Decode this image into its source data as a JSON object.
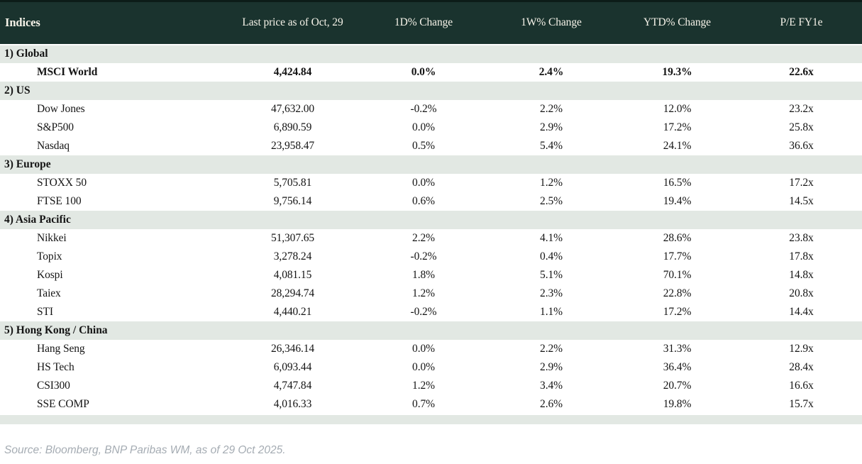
{
  "table": {
    "columns": [
      "Indices",
      "Last price as of Oct, 29",
      "1D% Change",
      "1W% Change",
      "YTD% Change",
      "P/E FY1e"
    ],
    "sections": [
      {
        "label": "1) Global",
        "rows": [
          {
            "name": "MSCI World",
            "last": "4,424.84",
            "d1": "0.0%",
            "d1c": "neg",
            "w1": "2.4%",
            "w1c": "pos",
            "ytd": "19.3%",
            "ytdc": "pos",
            "pe": "22.6x",
            "bold": true
          }
        ]
      },
      {
        "label": "2) US",
        "rows": [
          {
            "name": "Dow Jones",
            "last": "47,632.00",
            "d1": "-0.2%",
            "d1c": "neg",
            "w1": "2.2%",
            "w1c": "pos",
            "ytd": "12.0%",
            "ytdc": "pos",
            "pe": "23.2x",
            "bold": false
          },
          {
            "name": "S&P500",
            "last": "6,890.59",
            "d1": "0.0%",
            "d1c": "neg",
            "w1": "2.9%",
            "w1c": "pos",
            "ytd": "17.2%",
            "ytdc": "pos",
            "pe": "25.8x",
            "bold": false
          },
          {
            "name": "Nasdaq",
            "last": "23,958.47",
            "d1": "0.5%",
            "d1c": "pos",
            "w1": "5.4%",
            "w1c": "pos",
            "ytd": "24.1%",
            "ytdc": "pos",
            "pe": "36.6x",
            "bold": false
          }
        ]
      },
      {
        "label": "3) Europe",
        "rows": [
          {
            "name": "STOXX 50",
            "last": "5,705.81",
            "d1": "0.0%",
            "d1c": "pos",
            "w1": "1.2%",
            "w1c": "pos",
            "ytd": "16.5%",
            "ytdc": "pos",
            "pe": "17.2x",
            "bold": false
          },
          {
            "name": "FTSE 100",
            "last": "9,756.14",
            "d1": "0.6%",
            "d1c": "pos",
            "w1": "2.5%",
            "w1c": "pos",
            "ytd": "19.4%",
            "ytdc": "pos",
            "pe": "14.5x",
            "bold": false
          }
        ]
      },
      {
        "label": "4) Asia Pacific",
        "rows": [
          {
            "name": "Nikkei",
            "last": "51,307.65",
            "d1": "2.2%",
            "d1c": "pos",
            "w1": "4.1%",
            "w1c": "pos",
            "ytd": "28.6%",
            "ytdc": "pos",
            "pe": "23.8x",
            "bold": false
          },
          {
            "name": "Topix",
            "last": "3,278.24",
            "d1": "-0.2%",
            "d1c": "neg",
            "w1": "0.4%",
            "w1c": "pos",
            "ytd": "17.7%",
            "ytdc": "pos",
            "pe": "17.8x",
            "bold": false
          },
          {
            "name": "Kospi",
            "last": "4,081.15",
            "d1": "1.8%",
            "d1c": "pos",
            "w1": "5.1%",
            "w1c": "pos",
            "ytd": "70.1%",
            "ytdc": "pos",
            "pe": "14.8x",
            "bold": false
          },
          {
            "name": "Taiex",
            "last": "28,294.74",
            "d1": "1.2%",
            "d1c": "pos",
            "w1": "2.3%",
            "w1c": "pos",
            "ytd": "22.8%",
            "ytdc": "pos",
            "pe": "20.8x",
            "bold": false
          },
          {
            "name": "STI",
            "last": "4,440.21",
            "d1": "-0.2%",
            "d1c": "neg",
            "w1": "1.1%",
            "w1c": "pos",
            "ytd": "17.2%",
            "ytdc": "pos",
            "pe": "14.4x",
            "bold": false
          }
        ]
      },
      {
        "label": "5) Hong Kong / China",
        "rows": [
          {
            "name": "Hang Seng",
            "last": "26,346.14",
            "d1": "0.0%",
            "d1c": "flat",
            "w1": "2.2%",
            "w1c": "pos",
            "ytd": "31.3%",
            "ytdc": "pos",
            "pe": "12.9x",
            "bold": false
          },
          {
            "name": "HS Tech",
            "last": "6,093.44",
            "d1": "0.0%",
            "d1c": "flat",
            "w1": "2.9%",
            "w1c": "pos",
            "ytd": "36.4%",
            "ytdc": "pos",
            "pe": "28.4x",
            "bold": false
          },
          {
            "name": "CSI300",
            "last": "4,747.84",
            "d1": "1.2%",
            "d1c": "pos",
            "w1": "3.4%",
            "w1c": "pos",
            "ytd": "20.7%",
            "ytdc": "pos",
            "pe": "16.6x",
            "bold": false
          },
          {
            "name": "SSE COMP",
            "last": "4,016.33",
            "d1": "0.7%",
            "d1c": "pos",
            "w1": "2.6%",
            "w1c": "pos",
            "ytd": "19.8%",
            "ytdc": "pos",
            "pe": "15.7x",
            "bold": false
          }
        ]
      }
    ]
  },
  "footer": {
    "source": "Source: Bloomberg, BNP Paribas WM, as of 29 Oct 2025."
  },
  "colors": {
    "header_bg": "#1a332e",
    "header_text": "#f6f3e9",
    "section_bg": "#e2e8e3",
    "positive": "#007a35",
    "negative": "#c00019",
    "neutral_text": "#141414",
    "source_text": "#a5acb3"
  },
  "chart_data": {
    "type": "table",
    "title": "Indices",
    "columns": [
      "Indices",
      "Last price as of Oct, 29",
      "1D% Change",
      "1W% Change",
      "YTD% Change",
      "P/E FY1e"
    ],
    "rows": [
      {
        "section": "1) Global",
        "index": "MSCI World",
        "last_price": 4424.84,
        "d1_pct": 0.0,
        "w1_pct": 2.4,
        "ytd_pct": 19.3,
        "pe_fy1e": "22.6x"
      },
      {
        "section": "2) US",
        "index": "Dow Jones",
        "last_price": 47632.0,
        "d1_pct": -0.2,
        "w1_pct": 2.2,
        "ytd_pct": 12.0,
        "pe_fy1e": "23.2x"
      },
      {
        "section": "2) US",
        "index": "S&P500",
        "last_price": 6890.59,
        "d1_pct": 0.0,
        "w1_pct": 2.9,
        "ytd_pct": 17.2,
        "pe_fy1e": "25.8x"
      },
      {
        "section": "2) US",
        "index": "Nasdaq",
        "last_price": 23958.47,
        "d1_pct": 0.5,
        "w1_pct": 5.4,
        "ytd_pct": 24.1,
        "pe_fy1e": "36.6x"
      },
      {
        "section": "3) Europe",
        "index": "STOXX 50",
        "last_price": 5705.81,
        "d1_pct": 0.0,
        "w1_pct": 1.2,
        "ytd_pct": 16.5,
        "pe_fy1e": "17.2x"
      },
      {
        "section": "3) Europe",
        "index": "FTSE 100",
        "last_price": 9756.14,
        "d1_pct": 0.6,
        "w1_pct": 2.5,
        "ytd_pct": 19.4,
        "pe_fy1e": "14.5x"
      },
      {
        "section": "4) Asia Pacific",
        "index": "Nikkei",
        "last_price": 51307.65,
        "d1_pct": 2.2,
        "w1_pct": 4.1,
        "ytd_pct": 28.6,
        "pe_fy1e": "23.8x"
      },
      {
        "section": "4) Asia Pacific",
        "index": "Topix",
        "last_price": 3278.24,
        "d1_pct": -0.2,
        "w1_pct": 0.4,
        "ytd_pct": 17.7,
        "pe_fy1e": "17.8x"
      },
      {
        "section": "4) Asia Pacific",
        "index": "Kospi",
        "last_price": 4081.15,
        "d1_pct": 1.8,
        "w1_pct": 5.1,
        "ytd_pct": 70.1,
        "pe_fy1e": "14.8x"
      },
      {
        "section": "4) Asia Pacific",
        "index": "Taiex",
        "last_price": 28294.74,
        "d1_pct": 1.2,
        "w1_pct": 2.3,
        "ytd_pct": 22.8,
        "pe_fy1e": "20.8x"
      },
      {
        "section": "4) Asia Pacific",
        "index": "STI",
        "last_price": 4440.21,
        "d1_pct": -0.2,
        "w1_pct": 1.1,
        "ytd_pct": 17.2,
        "pe_fy1e": "14.4x"
      },
      {
        "section": "5) Hong Kong / China",
        "index": "Hang Seng",
        "last_price": 26346.14,
        "d1_pct": 0.0,
        "w1_pct": 2.2,
        "ytd_pct": 31.3,
        "pe_fy1e": "12.9x"
      },
      {
        "section": "5) Hong Kong / China",
        "index": "HS Tech",
        "last_price": 6093.44,
        "d1_pct": 0.0,
        "w1_pct": 2.9,
        "ytd_pct": 36.4,
        "pe_fy1e": "28.4x"
      },
      {
        "section": "5) Hong Kong / China",
        "index": "CSI300",
        "last_price": 4747.84,
        "d1_pct": 1.2,
        "w1_pct": 3.4,
        "ytd_pct": 20.7,
        "pe_fy1e": "16.6x"
      },
      {
        "section": "5) Hong Kong / China",
        "index": "SSE COMP",
        "last_price": 4016.33,
        "d1_pct": 0.7,
        "w1_pct": 2.6,
        "ytd_pct": 19.8,
        "pe_fy1e": "15.7x"
      }
    ]
  }
}
